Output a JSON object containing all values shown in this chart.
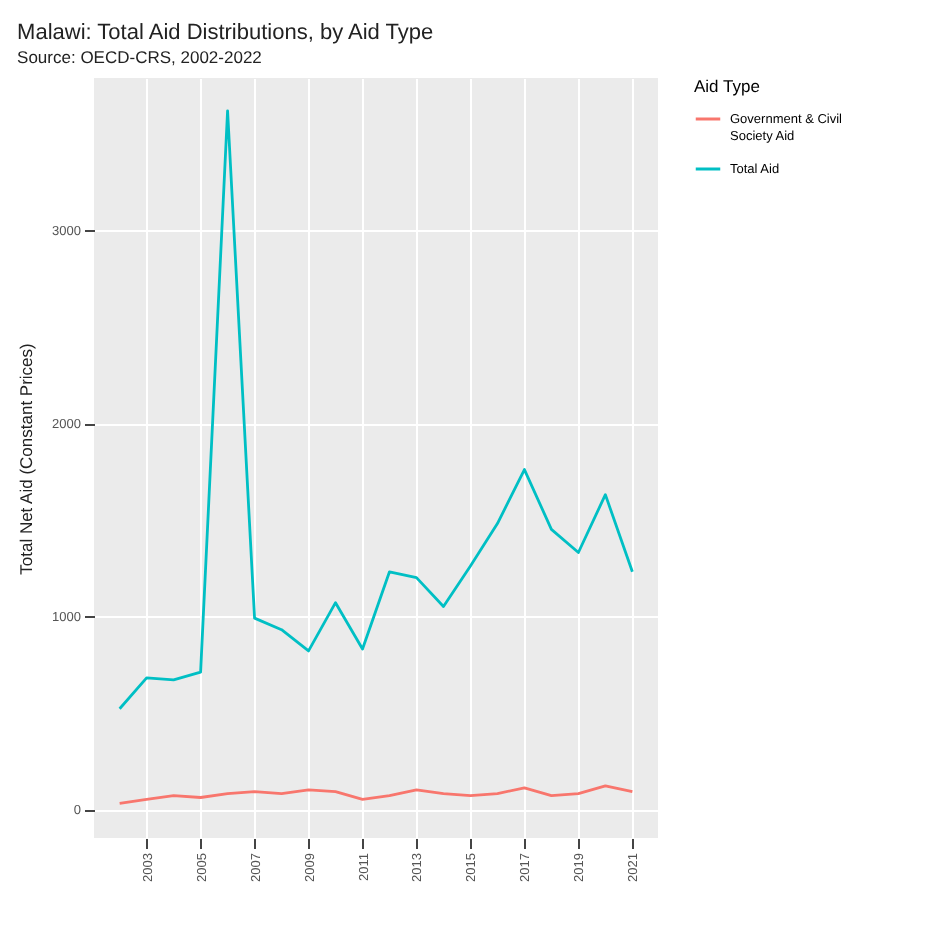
{
  "chart_data": {
    "type": "line",
    "title": "Malawi: Total Aid Distributions, by Aid Type",
    "subtitle": "Source: OECD-CRS, 2002-2022",
    "ylabel": "Total Net Aid (Constant Prices)",
    "legend_title": "Aid Type",
    "x": [
      2002,
      2003,
      2004,
      2005,
      2006,
      2007,
      2008,
      2009,
      2010,
      2011,
      2012,
      2013,
      2014,
      2015,
      2016,
      2017,
      2018,
      2019,
      2020,
      2021
    ],
    "series": [
      {
        "name": "Government & Civil Society Aid",
        "color": "#f8766d",
        "values": [
          30,
          50,
          70,
          60,
          80,
          90,
          80,
          100,
          90,
          50,
          70,
          100,
          80,
          70,
          80,
          110,
          70,
          80,
          120,
          90
        ]
      },
      {
        "name": "Total Aid",
        "color": "#00bfc4",
        "values": [
          520,
          680,
          670,
          710,
          3620,
          990,
          930,
          820,
          1070,
          830,
          1230,
          1200,
          1050,
          1260,
          1480,
          1760,
          1450,
          1330,
          1630,
          1230
        ]
      }
    ],
    "xlim": [
      2001.05,
      2021.95
    ],
    "xticks": [
      2003,
      2005,
      2007,
      2009,
      2011,
      2013,
      2015,
      2017,
      2019,
      2021
    ],
    "ylim": [
      -150,
      3790
    ],
    "yticks": [
      0,
      1000,
      2000,
      3000
    ],
    "grid": true,
    "legend": "right",
    "marker": "none",
    "line_style": "solid"
  }
}
